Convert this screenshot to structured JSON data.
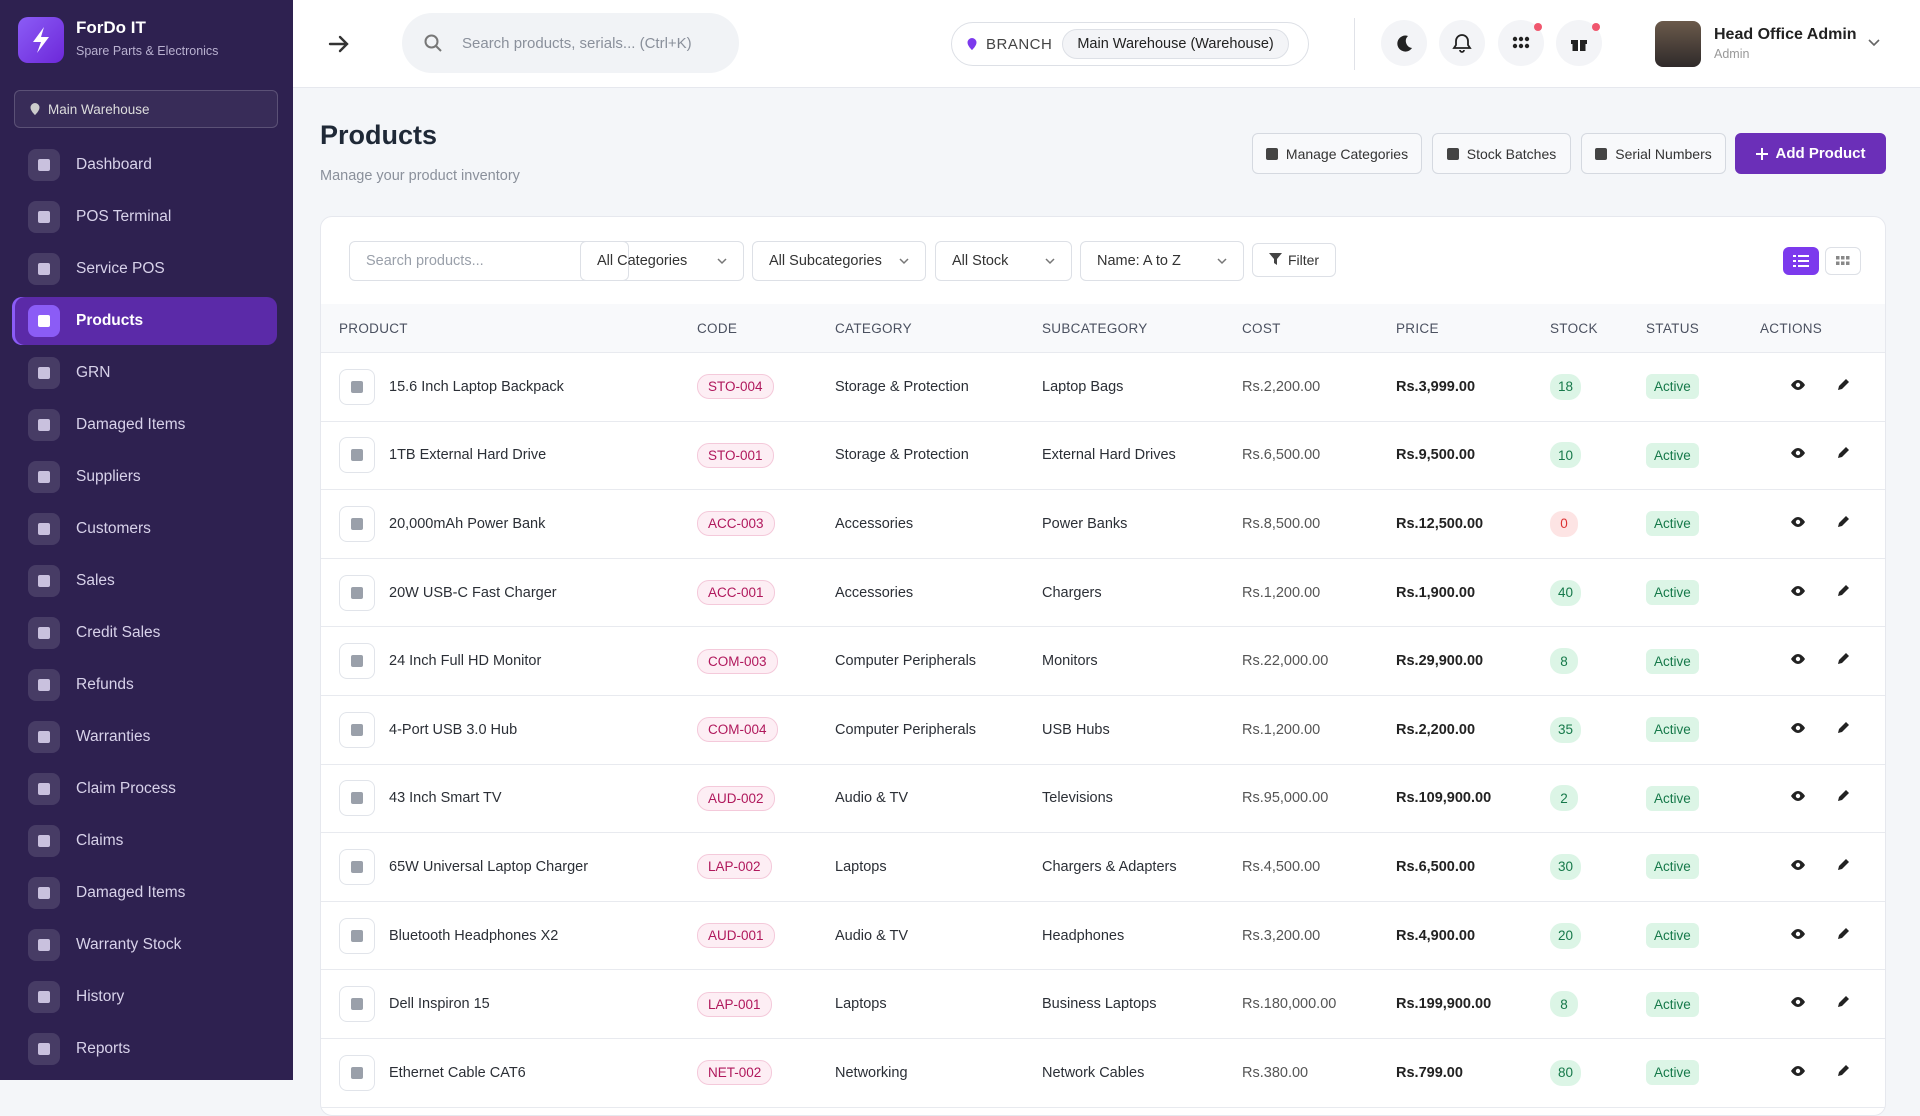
{
  "brand": {
    "name": "ForDo IT",
    "tagline": "Spare Parts & Electronics"
  },
  "sidebar_branch": "Main Warehouse",
  "nav": [
    {
      "label": "Dashboard"
    },
    {
      "label": "POS Terminal"
    },
    {
      "label": "Service POS"
    },
    {
      "label": "Products",
      "active": true
    },
    {
      "label": "GRN"
    },
    {
      "label": "Damaged Items"
    },
    {
      "label": "Suppliers"
    },
    {
      "label": "Customers"
    },
    {
      "label": "Sales"
    },
    {
      "label": "Credit Sales"
    },
    {
      "label": "Refunds"
    },
    {
      "label": "Warranties"
    },
    {
      "label": "Claim Process"
    },
    {
      "label": "Claims"
    },
    {
      "label": "Damaged Items"
    },
    {
      "label": "Warranty Stock"
    },
    {
      "label": "History"
    },
    {
      "label": "Reports"
    }
  ],
  "header": {
    "search_placeholder": "Search products, serials... (Ctrl+K)",
    "branch_label": "BRANCH",
    "branch_value": "Main Warehouse (Warehouse)",
    "user_name": "Head Office Admin",
    "user_role": "Admin"
  },
  "page": {
    "title": "Products",
    "subtitle": "Manage your product inventory",
    "buttons": [
      "Manage Categories",
      "Stock Batches",
      "Serial Numbers",
      "Add Product"
    ]
  },
  "filters": {
    "search_placeholder": "Search products...",
    "selects": [
      "All Categories",
      "All Subcategories",
      "All Stock",
      "Name: A to Z"
    ],
    "filter_button": "Filter"
  },
  "table": {
    "columns": [
      "PRODUCT",
      "CODE",
      "CATEGORY",
      "SUBCATEGORY",
      "COST",
      "PRICE",
      "STOCK",
      "STATUS",
      "ACTIONS"
    ],
    "rows": [
      [
        "15.6 Inch Laptop Backpack",
        "STO-004",
        "Storage & Protection",
        "Laptop Bags",
        "Rs.2,200.00",
        "Rs.3,999.00",
        18,
        "Active"
      ],
      [
        "1TB External Hard Drive",
        "STO-001",
        "Storage & Protection",
        "External Hard Drives",
        "Rs.6,500.00",
        "Rs.9,500.00",
        10,
        "Active"
      ],
      [
        "20,000mAh Power Bank",
        "ACC-003",
        "Accessories",
        "Power Banks",
        "Rs.8,500.00",
        "Rs.12,500.00",
        0,
        "Active"
      ],
      [
        "20W USB-C Fast Charger",
        "ACC-001",
        "Accessories",
        "Chargers",
        "Rs.1,200.00",
        "Rs.1,900.00",
        40,
        "Active"
      ],
      [
        "24 Inch Full HD Monitor",
        "COM-003",
        "Computer Peripherals",
        "Monitors",
        "Rs.22,000.00",
        "Rs.29,900.00",
        8,
        "Active"
      ],
      [
        "4-Port USB 3.0 Hub",
        "COM-004",
        "Computer Peripherals",
        "USB Hubs",
        "Rs.1,200.00",
        "Rs.2,200.00",
        35,
        "Active"
      ],
      [
        "43 Inch Smart TV",
        "AUD-002",
        "Audio & TV",
        "Televisions",
        "Rs.95,000.00",
        "Rs.109,900.00",
        2,
        "Active"
      ],
      [
        "65W Universal Laptop Charger",
        "LAP-002",
        "Laptops",
        "Chargers & Adapters",
        "Rs.4,500.00",
        "Rs.6,500.00",
        30,
        "Active"
      ],
      [
        "Bluetooth Headphones X2",
        "AUD-001",
        "Audio & TV",
        "Headphones",
        "Rs.3,200.00",
        "Rs.4,900.00",
        20,
        "Active"
      ],
      [
        "Dell Inspiron 15",
        "LAP-001",
        "Laptops",
        "Business Laptops",
        "Rs.180,000.00",
        "Rs.199,900.00",
        8,
        "Active"
      ],
      [
        "Ethernet Cable CAT6",
        "NET-002",
        "Networking",
        "Network Cables",
        "Rs.380.00",
        "Rs.799.00",
        80,
        "Active"
      ]
    ]
  }
}
